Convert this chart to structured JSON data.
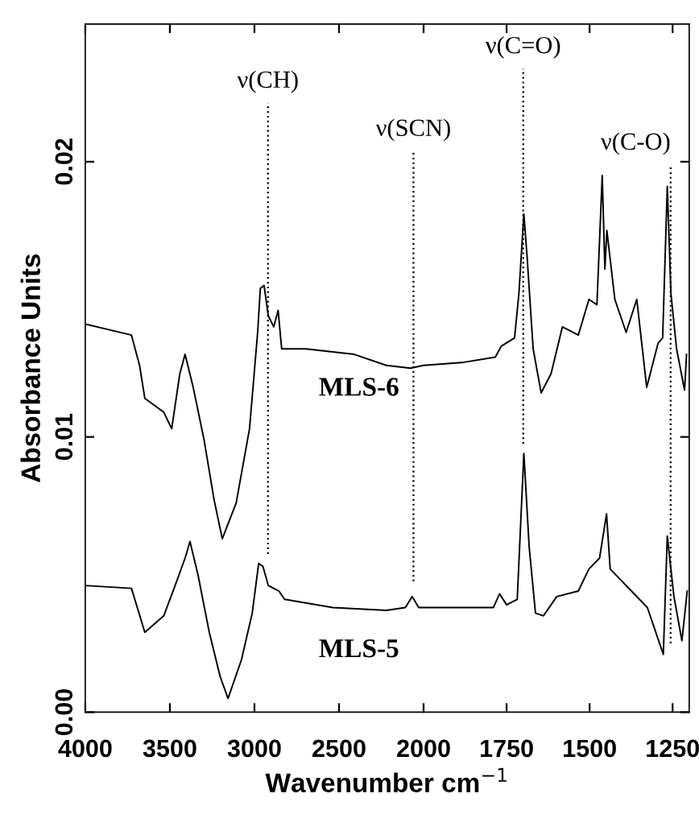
{
  "chart_data": [
    {
      "type": "line",
      "xlabel": "Wavenumber cm$^{−1}$",
      "ylabel": "Absorbance Units",
      "xlim": [
        4000,
        2000
      ],
      "xticks": [
        4000,
        3500,
        3000,
        2500,
        2000
      ],
      "ylim": [
        0,
        0.025
      ],
      "yticks": [
        {
          "value": 0,
          "label": "0.00"
        },
        {
          "value": 0.01,
          "label": "0.01"
        },
        {
          "value": 0.02,
          "label": "0.02"
        }
      ],
      "series": [
        {
          "name": "MLS-6",
          "color": "#000000",
          "x": [
            4000,
            3727,
            3679,
            3648,
            3536,
            3489,
            3441,
            3410,
            3362,
            3298,
            3238,
            3190,
            3108,
            3029,
            2981,
            2965,
            2943,
            2918,
            2886,
            2860,
            2839,
            2696,
            2410,
            2220,
            2077,
            2000
          ],
          "values": [
            0.0141,
            0.0137,
            0.0126,
            0.0114,
            0.0109,
            0.0103,
            0.0123,
            0.013,
            0.0118,
            0.0099,
            0.0077,
            0.0063,
            0.0076,
            0.0103,
            0.0138,
            0.0154,
            0.0155,
            0.0144,
            0.014,
            0.0146,
            0.0132,
            0.0132,
            0.013,
            0.0126,
            0.0125,
            0.0126
          ]
        },
        {
          "name": "MLS-5",
          "color": "#000000",
          "x": [
            4000,
            3727,
            3648,
            3536,
            3457,
            3410,
            3381,
            3334,
            3267,
            3203,
            3156,
            3077,
            3013,
            2975,
            2950,
            2918,
            2855,
            2822,
            2537,
            2220,
            2108,
            2067,
            2029,
            2000
          ],
          "values": [
            0.0046,
            0.0045,
            0.0029,
            0.0035,
            0.0048,
            0.0056,
            0.0062,
            0.005,
            0.0029,
            0.0013,
            0.0005,
            0.0019,
            0.0036,
            0.0054,
            0.0053,
            0.0046,
            0.0044,
            0.0041,
            0.0038,
            0.0037,
            0.0038,
            0.0042,
            0.0038,
            0.0038
          ]
        }
      ],
      "ref_lines": [
        {
          "axis": "x",
          "value": 2920,
          "label": "ν(CH)",
          "line_style": "dotted"
        },
        {
          "axis": "x",
          "value": 2060,
          "label": "ν(SCN)",
          "line_style": "dotted"
        }
      ],
      "legend": false,
      "grid": false
    },
    {
      "type": "line",
      "tick_labels": "x",
      "xlim": [
        2000,
        1200
      ],
      "xticks": [
        1750,
        1500,
        1250
      ],
      "ylim": [
        0,
        0.025
      ],
      "yticks": [
        {
          "value": 0,
          "label": null
        },
        {
          "value": 0.01,
          "label": null
        },
        {
          "value": 0.02,
          "label": null
        }
      ],
      "series": [
        {
          "color": "#000000",
          "x": [
            2000,
            1886,
            1784,
            1766,
            1726,
            1713,
            1698,
            1688,
            1670,
            1646,
            1616,
            1582,
            1534,
            1502,
            1478,
            1462,
            1454,
            1448,
            1424,
            1390,
            1358,
            1328,
            1294,
            1280,
            1266,
            1255,
            1238,
            1214,
            1208
          ],
          "values": [
            0.0126,
            0.0127,
            0.0129,
            0.0133,
            0.0136,
            0.0152,
            0.0181,
            0.0165,
            0.0132,
            0.0116,
            0.0123,
            0.014,
            0.0137,
            0.015,
            0.0148,
            0.0195,
            0.0161,
            0.0175,
            0.015,
            0.0138,
            0.015,
            0.0118,
            0.0134,
            0.0136,
            0.0191,
            0.0152,
            0.0132,
            0.0117,
            0.013
          ]
        },
        {
          "color": "#000000",
          "x": [
            2000,
            1790,
            1771,
            1750,
            1718,
            1698,
            1682,
            1663,
            1639,
            1599,
            1534,
            1502,
            1470,
            1449,
            1438,
            1406,
            1374,
            1326,
            1278,
            1266,
            1246,
            1222,
            1206
          ],
          "values": [
            0.0038,
            0.0038,
            0.0043,
            0.0039,
            0.0041,
            0.0094,
            0.006,
            0.0036,
            0.0035,
            0.0042,
            0.0044,
            0.0052,
            0.0056,
            0.0072,
            0.0052,
            0.0048,
            0.0044,
            0.0038,
            0.0021,
            0.0064,
            0.0042,
            0.0026,
            0.0044
          ]
        }
      ],
      "ref_lines": [
        {
          "axis": "x",
          "value": 1700,
          "label": "ν(C=O)",
          "line_style": "dotted"
        },
        {
          "axis": "x",
          "value": 1256,
          "label": "ν(C-O)",
          "line_style": "dotted"
        }
      ]
    }
  ]
}
